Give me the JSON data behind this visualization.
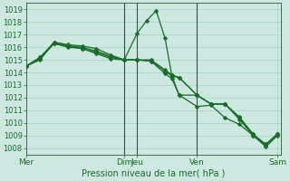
{
  "xlabel": "Pression niveau de la mer( hPa )",
  "bg_color": "#cce8e0",
  "grid_color": "#99ccbb",
  "line_color": "#1a6b2a",
  "vline_color": "#2d5a2d",
  "ylim": [
    1007.5,
    1019.5
  ],
  "yticks": [
    1008,
    1009,
    1010,
    1011,
    1012,
    1013,
    1014,
    1015,
    1016,
    1017,
    1018,
    1019
  ],
  "xlim": [
    0,
    10.0
  ],
  "xtick_positions": [
    0.0,
    3.85,
    4.35,
    6.7,
    9.85
  ],
  "xtick_labels": [
    "Mer",
    "Dim",
    "Jeu",
    "Ven",
    "Sam"
  ],
  "vline_positions": [
    3.85,
    4.35,
    6.7
  ],
  "lines": [
    {
      "x": [
        0.0,
        0.55,
        1.1,
        1.65,
        2.2,
        2.75,
        3.3,
        3.85,
        4.35,
        4.9,
        5.45,
        5.72,
        6.0,
        6.7,
        7.25,
        7.8,
        8.35,
        8.9,
        9.4,
        9.85
      ],
      "y": [
        1014.5,
        1015.0,
        1016.4,
        1016.1,
        1015.9,
        1015.5,
        1015.1,
        1015.0,
        1015.0,
        1014.9,
        1014.1,
        1013.7,
        1013.6,
        1012.2,
        1011.5,
        1011.5,
        1010.3,
        1009.0,
        1008.3,
        1009.1
      ]
    },
    {
      "x": [
        0.0,
        0.55,
        1.1,
        1.65,
        2.2,
        2.75,
        3.3,
        3.85,
        4.35,
        4.9,
        5.45,
        5.72,
        6.0,
        6.7,
        7.25,
        7.8,
        8.35,
        8.9,
        9.4,
        9.85
      ],
      "y": [
        1014.5,
        1015.2,
        1016.3,
        1016.1,
        1016.0,
        1015.7,
        1015.3,
        1015.0,
        1015.0,
        1015.0,
        1014.2,
        1013.8,
        1013.6,
        1012.2,
        1011.5,
        1011.5,
        1010.4,
        1009.1,
        1008.3,
        1009.1
      ]
    },
    {
      "x": [
        0.0,
        0.55,
        1.1,
        1.65,
        2.2,
        2.75,
        3.3,
        3.85,
        4.35,
        4.72,
        5.1,
        5.45,
        5.72,
        6.0,
        6.7,
        7.25,
        7.8,
        8.35,
        8.9,
        9.4,
        9.85
      ],
      "y": [
        1014.5,
        1015.2,
        1016.4,
        1016.2,
        1016.1,
        1015.9,
        1015.4,
        1015.0,
        1017.1,
        1018.1,
        1018.9,
        1016.7,
        1013.7,
        1012.2,
        1012.2,
        1011.5,
        1011.5,
        1010.5,
        1009.1,
        1008.2,
        1009.1
      ]
    },
    {
      "x": [
        0.0,
        0.55,
        1.1,
        1.65,
        2.2,
        2.75,
        3.3,
        3.85,
        4.35,
        4.9,
        5.45,
        5.72,
        6.0,
        6.7,
        7.25,
        7.8,
        8.35,
        8.9,
        9.4,
        9.85
      ],
      "y": [
        1014.5,
        1015.1,
        1016.3,
        1016.0,
        1015.9,
        1015.6,
        1015.2,
        1015.0,
        1015.0,
        1014.9,
        1013.9,
        1013.5,
        1012.2,
        1011.3,
        1011.4,
        1010.4,
        1009.9,
        1009.0,
        1008.1,
        1009.0
      ]
    }
  ],
  "markersize": 2.5,
  "linewidth": 0.9
}
